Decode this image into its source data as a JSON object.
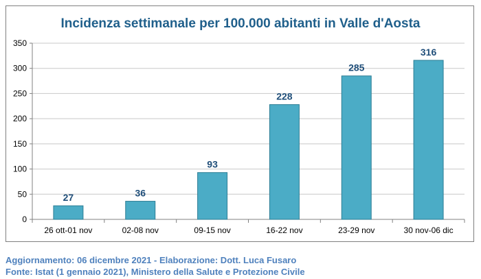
{
  "chart_data": {
    "type": "bar",
    "title": "Incidenza settimanale per 100.000 abitanti in Valle d'Aosta",
    "categories": [
      "26 ott-01 nov",
      "02-08 nov",
      "09-15 nov",
      "16-22 nov",
      "23-29 nov",
      "30 nov-06 dic"
    ],
    "values": [
      27,
      36,
      93,
      228,
      285,
      316
    ],
    "ylim": [
      0,
      350
    ],
    "yticks": [
      0,
      50,
      100,
      150,
      200,
      250,
      300,
      350
    ],
    "grid": true,
    "legend": "none",
    "colors": {
      "bar_fill": "#4bacc6",
      "bar_stroke": "#2c7d94",
      "title": "#1f5f8b",
      "data_label": "#1f4e79",
      "grid": "#c8c8c8",
      "axis": "#808080"
    }
  },
  "footer": {
    "line1": "Aggiornamento: 06 dicembre 2021 - Elaborazione: Dott. Luca Fusaro",
    "line2": "Fonte: Istat (1 gennaio 2021), Ministero della Salute e Protezione Civile"
  }
}
